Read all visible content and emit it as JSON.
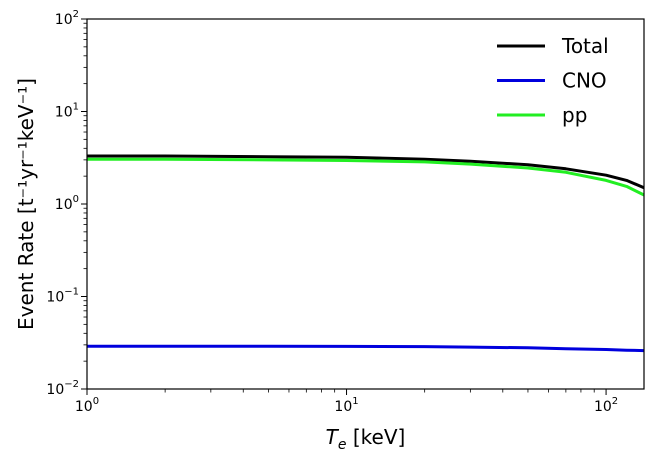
{
  "chart_data": {
    "type": "line",
    "xscale": "log",
    "yscale": "log",
    "xlim": [
      1,
      140
    ],
    "ylim": [
      0.01,
      100
    ],
    "xlabel": {
      "main": "T",
      "sub": "e",
      "unit": " [keV]"
    },
    "ylabel": "Event Rate [t⁻¹yr⁻¹keV⁻¹]",
    "x_ticks": [
      {
        "value": 1,
        "base": "10",
        "exp": "0"
      },
      {
        "value": 10,
        "base": "10",
        "exp": "1"
      },
      {
        "value": 100,
        "base": "10",
        "exp": "2"
      }
    ],
    "y_ticks": [
      {
        "value": 0.01,
        "base": "10",
        "exp": "−2"
      },
      {
        "value": 0.1,
        "base": "10",
        "exp": "−1"
      },
      {
        "value": 1,
        "base": "10",
        "exp": "0"
      },
      {
        "value": 10,
        "base": "10",
        "exp": "1"
      },
      {
        "value": 100,
        "base": "10",
        "exp": "2"
      }
    ],
    "grid": false,
    "legend_position": "top-right",
    "series": [
      {
        "name": "Total",
        "color": "#000000",
        "x": [
          1,
          2,
          5,
          10,
          20,
          30,
          50,
          70,
          100,
          120,
          140
        ],
        "y": [
          3.3,
          3.3,
          3.25,
          3.2,
          3.05,
          2.9,
          2.65,
          2.4,
          2.05,
          1.8,
          1.5
        ]
      },
      {
        "name": "CNO",
        "color": "#0000dd",
        "x": [
          1,
          2,
          5,
          10,
          20,
          30,
          50,
          70,
          100,
          120,
          140
        ],
        "y": [
          0.029,
          0.029,
          0.029,
          0.0289,
          0.0287,
          0.0284,
          0.0279,
          0.0273,
          0.0267,
          0.0263,
          0.026
        ]
      },
      {
        "name": "pp",
        "color": "#22ee22",
        "x": [
          1,
          2,
          5,
          10,
          20,
          30,
          50,
          70,
          100,
          120,
          140
        ],
        "y": [
          3.05,
          3.05,
          3.0,
          2.95,
          2.85,
          2.7,
          2.45,
          2.2,
          1.8,
          1.55,
          1.25
        ]
      }
    ]
  }
}
